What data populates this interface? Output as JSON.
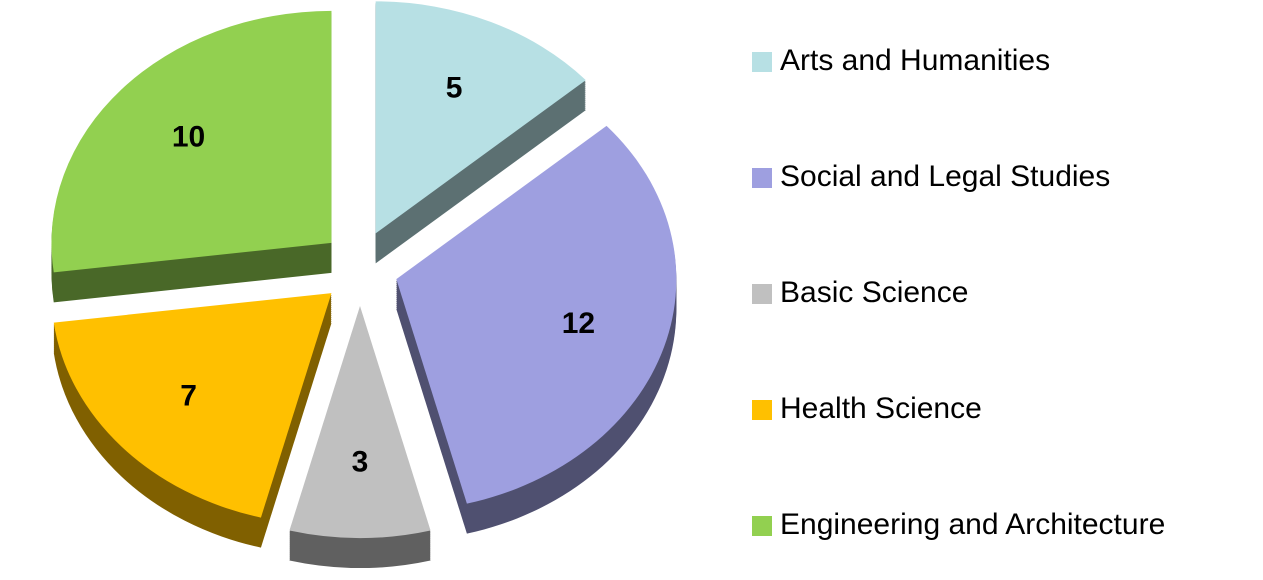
{
  "chart_data": {
    "type": "pie",
    "categories": [
      "Arts and Humanities",
      "Social and Legal Studies",
      "Basic Science",
      "Health Science",
      "Engineering and Architecture"
    ],
    "values": [
      5,
      12,
      3,
      7,
      10
    ],
    "colors": [
      "#b7e0e4",
      "#9e9fe0",
      "#c0c0c0",
      "#ffc000",
      "#92d050"
    ],
    "legend": "right"
  }
}
